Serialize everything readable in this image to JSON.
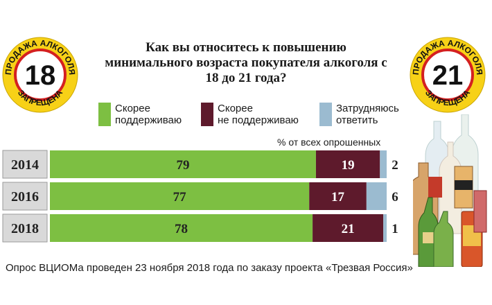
{
  "title": "Как вы относитесь к повышению минимального возраста покупателя алкоголя с 18 до 21 года?",
  "badges": {
    "left": {
      "top_text": "ПРОДАЖА АЛКОГОЛЯ",
      "number": "18",
      "bottom_text": "ЗАПРЕЩЕНА"
    },
    "right": {
      "top_text": "ПРОДАЖА АЛКОГОЛЯ",
      "number": "21",
      "bottom_text": "ЗАПРЕЩЕНА"
    }
  },
  "legend": [
    {
      "line1": "Скорее",
      "line2": "поддерживаю",
      "color": "#7dbf42"
    },
    {
      "line1": "Скорее",
      "line2": "не поддерживаю",
      "color": "#5e1a2c"
    },
    {
      "line1": "Затрудняюсь",
      "line2": "ответить",
      "color": "#9bbbd0"
    }
  ],
  "unit_note": "% от всех опрошенных",
  "chart_data": {
    "type": "bar",
    "stacked": true,
    "orientation": "horizontal",
    "categories": [
      "2014",
      "2016",
      "2018"
    ],
    "series": [
      {
        "name": "Скорее поддерживаю",
        "values": [
          79,
          77,
          78
        ],
        "color": "#7dbf42"
      },
      {
        "name": "Скорее не поддерживаю",
        "values": [
          19,
          17,
          21
        ],
        "color": "#5e1a2c"
      },
      {
        "name": "Затрудняюсь ответить",
        "values": [
          2,
          6,
          1
        ],
        "color": "#9bbbd0"
      }
    ]
  },
  "footer": "Опрос ВЦИОМа проведен 23 ноября 2018 года по заказу проекта «Трезвая Россия»"
}
